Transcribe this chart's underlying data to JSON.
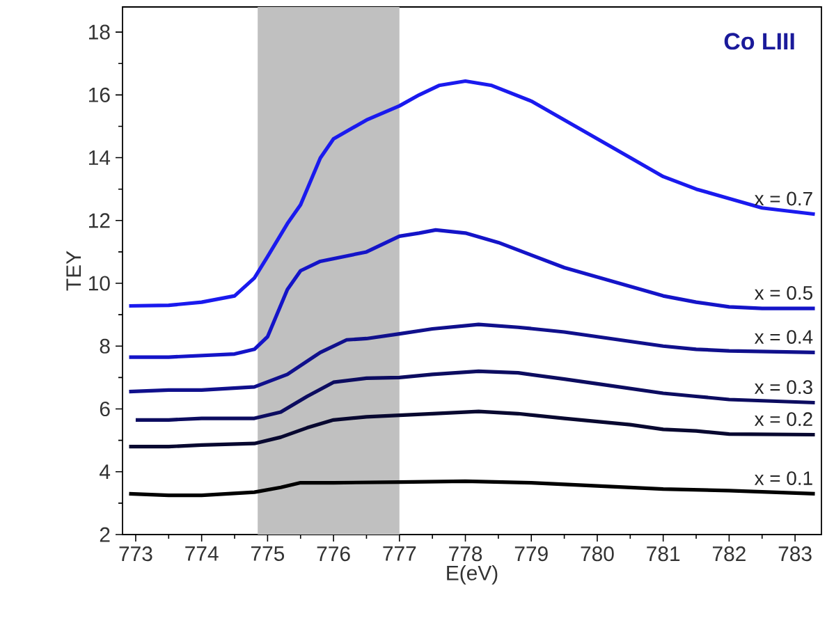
{
  "chart_data": {
    "type": "line",
    "title": "Co LIII",
    "xlabel": "E(eV)",
    "ylabel": "TEY",
    "xlim": [
      772.8,
      783.4
    ],
    "ylim": [
      2,
      18.8
    ],
    "xticks": [
      773,
      774,
      775,
      776,
      777,
      778,
      779,
      780,
      781,
      782,
      783
    ],
    "yticks": [
      2,
      4,
      6,
      8,
      10,
      12,
      14,
      16,
      18
    ],
    "grid": false,
    "legend": false,
    "marker": "none",
    "line_style": "solid",
    "bands": [
      {
        "axis": "x",
        "from": 774.85,
        "to": 777.0,
        "color": "#c0c0c0"
      }
    ],
    "series": [
      {
        "name": "x = 0.7",
        "color": "#1a1aee",
        "x": [
          772.9,
          773.5,
          774,
          774.5,
          774.8,
          775,
          775.3,
          775.5,
          775.8,
          776,
          776.5,
          777,
          777.3,
          777.6,
          778,
          778.4,
          779,
          779.5,
          780,
          780.5,
          781,
          781.5,
          782,
          782.5,
          783.3
        ],
        "values": [
          9.28,
          9.3,
          9.4,
          9.6,
          10.17,
          10.85,
          11.9,
          12.5,
          13.99,
          14.6,
          15.2,
          15.65,
          16.0,
          16.3,
          16.44,
          16.3,
          15.8,
          15.2,
          14.6,
          14.0,
          13.4,
          13.0,
          12.7,
          12.4,
          12.2
        ]
      },
      {
        "name": "x = 0.5",
        "color": "#1414c8",
        "x": [
          772.9,
          773.5,
          774,
          774.5,
          774.8,
          775,
          775.3,
          775.5,
          775.8,
          776.5,
          777,
          777.3,
          777.55,
          778,
          778.5,
          779,
          779.5,
          780,
          780.5,
          781,
          781.5,
          782,
          782.5,
          783.3
        ],
        "values": [
          7.65,
          7.65,
          7.7,
          7.75,
          7.9,
          8.3,
          9.8,
          10.4,
          10.7,
          11.0,
          11.5,
          11.6,
          11.7,
          11.6,
          11.3,
          10.9,
          10.5,
          10.2,
          9.9,
          9.6,
          9.4,
          9.25,
          9.2,
          9.2
        ]
      },
      {
        "name": "x = 0.4",
        "color": "#10108c",
        "x": [
          772.9,
          773.5,
          774,
          774.8,
          775.3,
          775.8,
          776.2,
          776.5,
          777,
          777.5,
          778.2,
          778.8,
          779.5,
          780,
          780.5,
          781,
          781.5,
          782,
          783.3
        ],
        "values": [
          6.55,
          6.6,
          6.6,
          6.7,
          7.1,
          7.8,
          8.2,
          8.24,
          8.39,
          8.55,
          8.69,
          8.6,
          8.45,
          8.3,
          8.15,
          8.0,
          7.9,
          7.85,
          7.8
        ]
      },
      {
        "name": "x = 0.3",
        "color": "#0c0c60",
        "x": [
          773.0,
          773.5,
          774,
          774.8,
          775.2,
          775.6,
          776,
          776.5,
          777,
          777.5,
          778.2,
          778.8,
          779.5,
          780,
          780.5,
          781,
          781.5,
          782,
          783.3
        ],
        "values": [
          5.65,
          5.65,
          5.7,
          5.7,
          5.9,
          6.4,
          6.85,
          6.98,
          7.0,
          7.1,
          7.2,
          7.15,
          6.95,
          6.8,
          6.65,
          6.5,
          6.4,
          6.3,
          6.2
        ]
      },
      {
        "name": "x = 0.2",
        "color": "#080830",
        "x": [
          772.9,
          773.5,
          774,
          774.8,
          775.2,
          775.6,
          776,
          776.5,
          777,
          777.5,
          778.2,
          778.8,
          779.5,
          780,
          780.5,
          781,
          781.5,
          782,
          783.3
        ],
        "values": [
          4.8,
          4.8,
          4.85,
          4.9,
          5.1,
          5.4,
          5.65,
          5.75,
          5.8,
          5.85,
          5.92,
          5.85,
          5.7,
          5.6,
          5.5,
          5.35,
          5.3,
          5.2,
          5.18
        ]
      },
      {
        "name": "x = 0.1",
        "color": "#000000",
        "x": [
          772.9,
          773.5,
          774,
          774.8,
          775.2,
          775.5,
          776,
          777,
          778,
          779,
          780,
          781,
          782,
          783.3
        ],
        "values": [
          3.3,
          3.25,
          3.25,
          3.35,
          3.5,
          3.65,
          3.65,
          3.67,
          3.7,
          3.65,
          3.55,
          3.45,
          3.4,
          3.3
        ]
      }
    ]
  }
}
